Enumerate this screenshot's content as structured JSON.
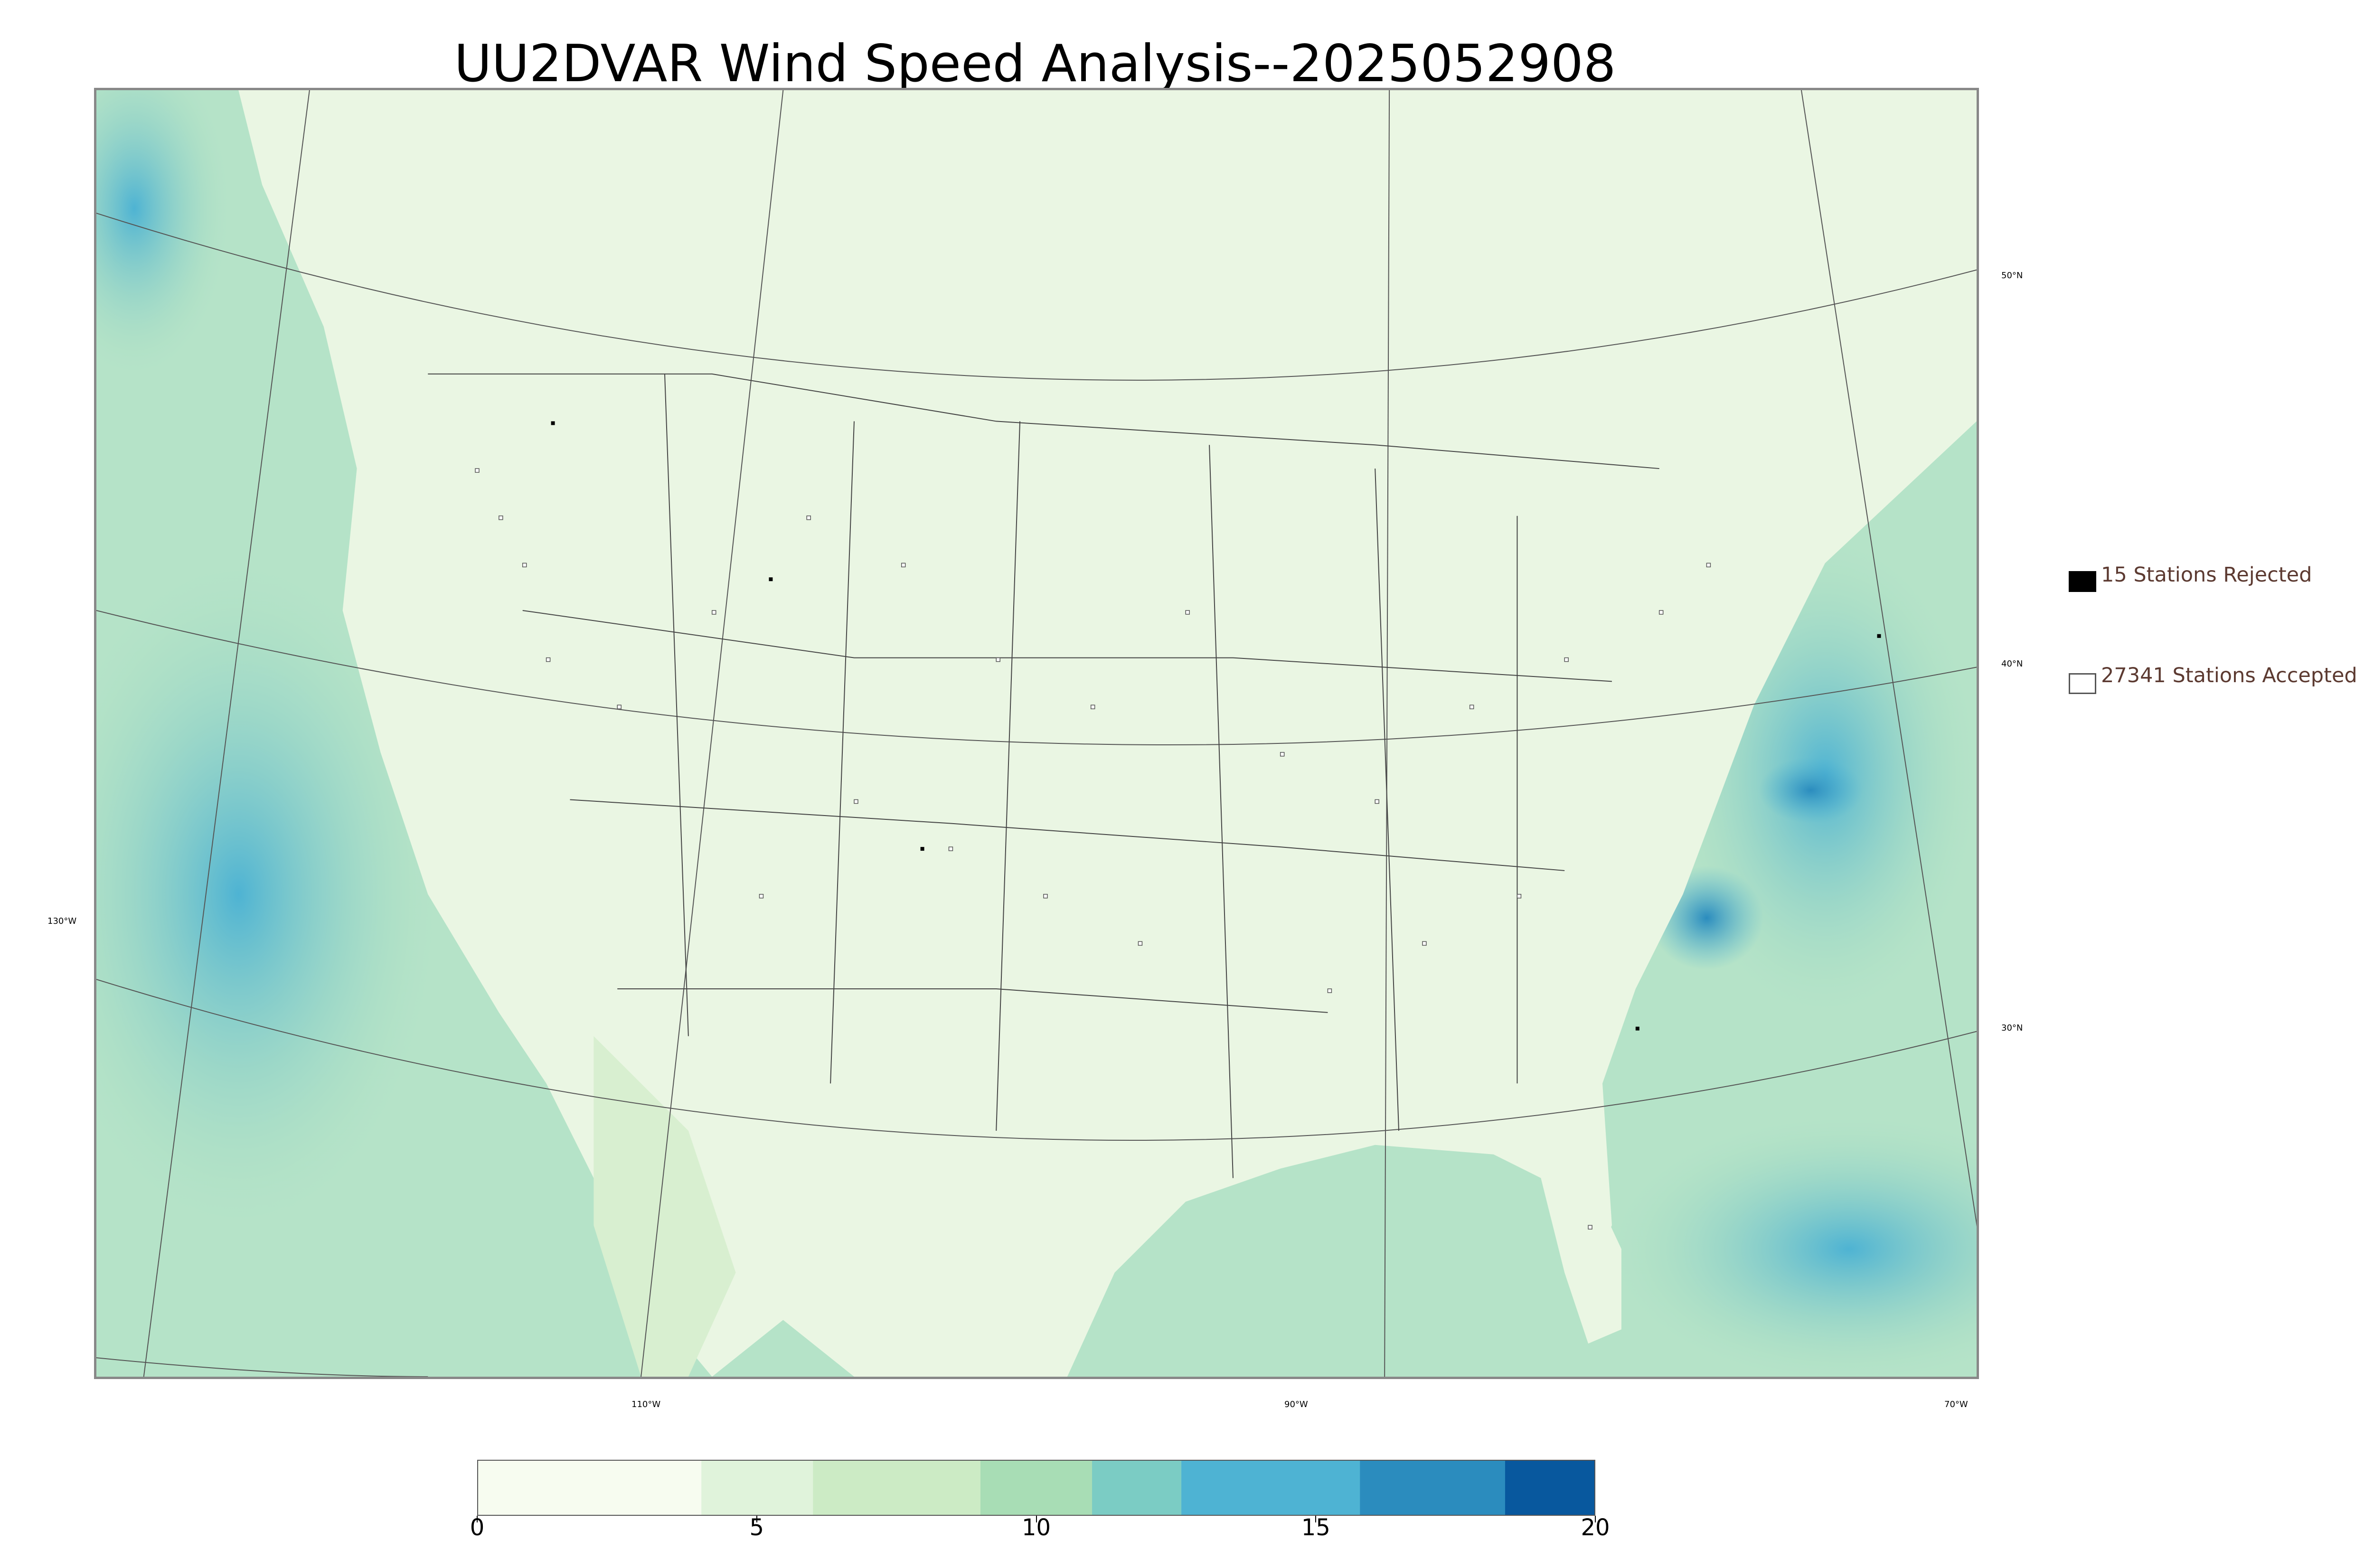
{
  "title": "UU2DVAR Wind Speed Analysis--2025052908",
  "legend": {
    "rejected_label": "15 Stations Rejected",
    "accepted_label": "27341 Stations Accepted"
  },
  "coordinates": {
    "lat_50": "50°N",
    "lat_40": "40°N",
    "lat_30": "30°N",
    "lon_130": "130°W",
    "lon_110": "110°W",
    "lon_90": "90°W",
    "lon_70": "70°W"
  },
  "colorbar": {
    "min": 0,
    "max": 20,
    "tick_labels": [
      "0",
      "5",
      "10",
      "15",
      "20"
    ],
    "colors": [
      "#f7fcf0",
      "#e0f3db",
      "#ccebc5",
      "#a8ddb5",
      "#7bccc4",
      "#4eb3d3",
      "#2b8cbe",
      "#08589e"
    ]
  },
  "colors": {
    "land": "#eaf6e3",
    "ocean": "#a8ddc0",
    "ocean_strong": "#4eb3d3",
    "station_rejected": "#000000",
    "station_accepted": "#ffffff",
    "legend_text": "#5c3a31"
  }
}
